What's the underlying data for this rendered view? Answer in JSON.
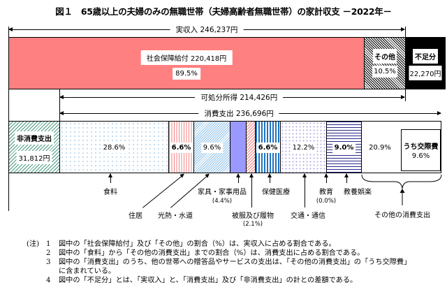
{
  "title": "図１　65歳以上の夫婦のみの無職世帯（夫婦高齢者無職世帯）の家計収支 －2022年－",
  "chart_data": {
    "type": "bar",
    "orientation": "horizontal-stacked",
    "income": {
      "label": "実収入 246,237円",
      "total": 246237,
      "segments": [
        {
          "name": "社会保障給付",
          "label": "社会保障給付  220,418円",
          "value": 220418,
          "pct": "89.5%",
          "color": "#ff8080"
        },
        {
          "name": "その他",
          "label": "その他",
          "pct": "10.5%",
          "pattern": "dense-hatch"
        },
        {
          "name": "不足分",
          "label": "不足分",
          "value_label": "22,270円",
          "value": 22270,
          "color": "#000000"
        }
      ]
    },
    "disposable_income": {
      "label": "可処分所得  214,426円",
      "value": 214426
    },
    "consumption": {
      "label": "消費支出  236,696円",
      "value": 236696
    },
    "expenditure": {
      "non_consumption": {
        "label": "非消費支出",
        "value_label": "31,812円",
        "value": 31812
      },
      "segments": [
        {
          "name": "食料",
          "pct": 28.6,
          "pct_label": "28.6%"
        },
        {
          "name": "住居",
          "pct": 6.6,
          "pct_label": "6.6%"
        },
        {
          "name": "光熱・水道",
          "pct": 9.6,
          "pct_label": "9.6%"
        },
        {
          "name": "家具・家事用品",
          "pct": 4.4,
          "pct_label": "(4.4%)"
        },
        {
          "name": "被服及び履物",
          "pct": 2.1,
          "pct_label": "(2.1%)"
        },
        {
          "name": "保健医療",
          "pct": 6.6,
          "pct_label": "6.6%"
        },
        {
          "name": "交通・通信",
          "pct": 12.2,
          "pct_label": "12.2%"
        },
        {
          "name": "教育",
          "pct": 0.0,
          "pct_label": "(0.0%)"
        },
        {
          "name": "教養娯楽",
          "pct": 9.0,
          "pct_label": "9.0%"
        },
        {
          "name": "その他の消費支出",
          "pct": 20.9,
          "pct_label": "20.9%"
        }
      ],
      "social_expense": {
        "label": "うち交際費",
        "pct": 9.6,
        "pct_label": "9.6%"
      }
    }
  },
  "notes": {
    "prefix": "(注)",
    "items": [
      {
        "num": "1",
        "text": "図中の「社会保障給付」及び「その他」の割合（%）は、実収入に占める割合である。"
      },
      {
        "num": "2",
        "text": "図中の「食料」から「その他の消費支出」までの割合（%）は、消費支出に占める割合である。"
      },
      {
        "num": "3",
        "text": "図中の「消費支出」のうち、他の世帯への贈答品やサービスの支出は、「その他の消費支出」の「うち交際費」",
        "cont": "に含まれている。"
      },
      {
        "num": "4",
        "text": "図中の「不足分」とは、「実収入」と、「消費支出」及び「非消費支出」の計との差額である。"
      }
    ]
  }
}
